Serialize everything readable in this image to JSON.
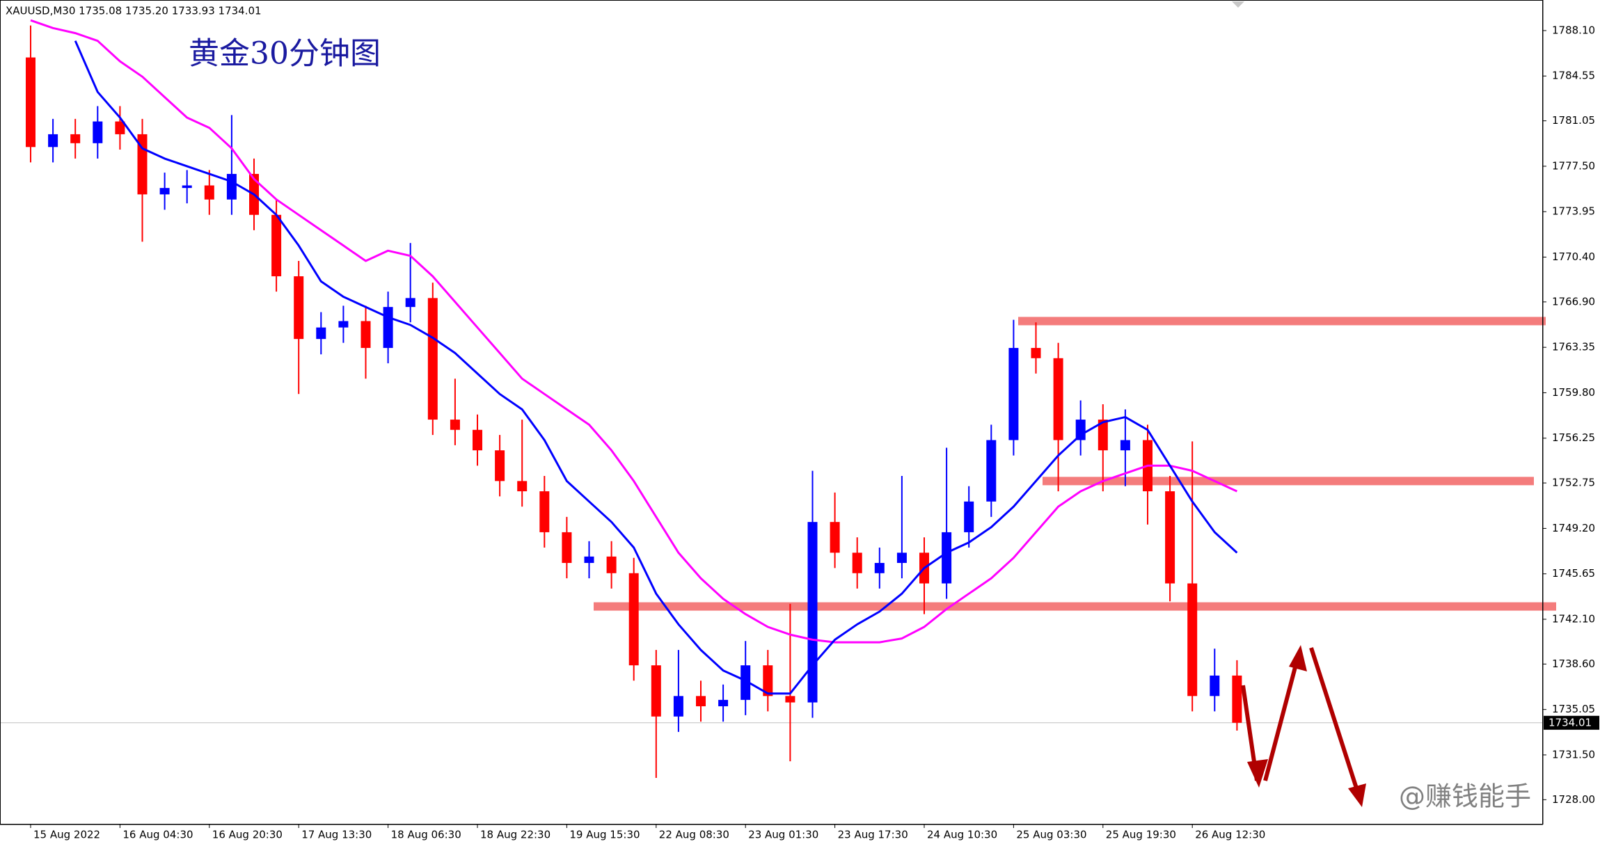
{
  "chart_data": {
    "type": "candlestick",
    "header": "XAUUSD,M30  1735.08 1735.20 1733.93 1734.01",
    "title": "黄金30分钟图",
    "watermark": "@赚钱能手",
    "categories": [
      "15 Aug 2022",
      null,
      null,
      null,
      "16 Aug 04:30",
      null,
      null,
      null,
      "16 Aug 20:30",
      null,
      null,
      null,
      "17 Aug 13:30",
      null,
      null,
      null,
      "18 Aug 06:30",
      null,
      null,
      null,
      "18 Aug 22:30",
      null,
      null,
      null,
      "19 Aug 15:30",
      null,
      null,
      null,
      "22 Aug 08:30",
      null,
      null,
      null,
      "23 Aug 01:30",
      null,
      null,
      null,
      "23 Aug 17:30",
      null,
      null,
      null,
      "24 Aug 10:30",
      null,
      null,
      null,
      "25 Aug 03:30",
      null,
      null,
      null,
      "25 Aug 19:30",
      null,
      null,
      null,
      "26 Aug 12:30",
      null,
      null
    ],
    "open": [
      1786,
      1779,
      1780,
      1779.3,
      1781,
      1780,
      1775.3,
      1775.8,
      1776,
      1774.9,
      1776.9,
      1773.7,
      1768.9,
      1764,
      1764.9,
      1765.4,
      1763.3,
      1766.5,
      1767.2,
      1757.7,
      1756.9,
      1755.3,
      1752.9,
      1752.1,
      1748.9,
      1746.5,
      1747,
      1745.7,
      1738.5,
      1734.5,
      1736.1,
      1735.3,
      1735.8,
      1738.5,
      1736.1,
      1735.6,
      1749.7,
      1747.3,
      1745.7,
      1746.5,
      1747.3,
      1744.9,
      1748.9,
      1751.3,
      1756.1,
      1763.3,
      1762.5,
      1756.1,
      1757.7,
      1755.3,
      1756.1,
      1752.1,
      1744.9,
      1736.1,
      1737.7
    ],
    "high": [
      1788.5,
      1781.2,
      1781.2,
      1782.2,
      1782.2,
      1781.2,
      1777,
      1777.2,
      1777.2,
      1781.5,
      1778.1,
      1774.9,
      1770.1,
      1766.1,
      1766.6,
      1766.6,
      1767.7,
      1771.5,
      1768.4,
      1760.9,
      1758.1,
      1756.5,
      1757.7,
      1753.3,
      1750.1,
      1748.2,
      1748.2,
      1746.9,
      1739.7,
      1739.7,
      1737.3,
      1737,
      1740.4,
      1739.7,
      1743.3,
      1753.7,
      1752,
      1748.5,
      1747.7,
      1753.3,
      1748.5,
      1755.5,
      1752.5,
      1757.3,
      1765.5,
      1765.3,
      1763.7,
      1759.2,
      1758.9,
      1758.5,
      1757.3,
      1753.3,
      1756,
      1739.8,
      1738.9
    ],
    "low": [
      1777.8,
      1777.8,
      1778.1,
      1778.1,
      1778.8,
      1771.6,
      1774.1,
      1774.6,
      1773.7,
      1773.7,
      1772.5,
      1767.7,
      1759.7,
      1762.8,
      1763.7,
      1760.9,
      1762.1,
      1765.3,
      1756.5,
      1755.7,
      1754.1,
      1751.7,
      1750.9,
      1747.7,
      1745.3,
      1745.3,
      1744.5,
      1737.3,
      1729.7,
      1733.3,
      1734.1,
      1734.1,
      1734.6,
      1734.9,
      1731,
      1734.4,
      1746.1,
      1744.5,
      1744.5,
      1745.3,
      1742.5,
      1743.7,
      1747.7,
      1750.1,
      1754.9,
      1761.3,
      1752.1,
      1754.9,
      1752.1,
      1752.5,
      1749.5,
      1743.5,
      1734.9,
      1734.9,
      1733.4
    ],
    "close": [
      1779,
      1780,
      1779.3,
      1781,
      1780,
      1775.3,
      1775.8,
      1776,
      1774.9,
      1776.9,
      1773.7,
      1768.9,
      1764,
      1764.9,
      1765.4,
      1763.3,
      1766.5,
      1767.2,
      1757.7,
      1756.9,
      1755.3,
      1752.9,
      1752.1,
      1748.9,
      1746.5,
      1747,
      1745.7,
      1738.5,
      1734.5,
      1736.1,
      1735.3,
      1735.8,
      1738.5,
      1736.1,
      1735.6,
      1749.7,
      1747.3,
      1745.7,
      1746.5,
      1747.3,
      1744.9,
      1748.9,
      1751.3,
      1756.1,
      1763.3,
      1762.5,
      1756.1,
      1757.7,
      1755.3,
      1756.1,
      1752.1,
      1744.9,
      1736.1,
      1737.7,
      1734.01
    ],
    "up_color": "#0000ff",
    "down_color": "#ff0000",
    "moving_averages": [
      {
        "color": "#ff00ff",
        "values": [
          1788.9,
          1788.3,
          1787.9,
          1787.3,
          1785.7,
          1784.5,
          1782.9,
          1781.3,
          1780.5,
          1778.9,
          1776.5,
          1774.9,
          1773.7,
          1772.5,
          1771.3,
          1770.1,
          1770.9,
          1770.5,
          1768.9,
          1766.9,
          1764.9,
          1762.9,
          1760.9,
          1759.7,
          1758.5,
          1757.3,
          1755.3,
          1752.9,
          1750.1,
          1747.3,
          1745.3,
          1743.7,
          1742.5,
          1741.5,
          1740.9,
          1740.5,
          1740.3,
          1740.3,
          1740.3,
          1740.6,
          1741.5,
          1742.9,
          1744.1,
          1745.3,
          1746.9,
          1748.9,
          1750.9,
          1752.1,
          1752.9,
          1753.5,
          1754.1,
          1754.1,
          1753.7,
          1752.9,
          1752.1
        ]
      },
      {
        "color": "#0000ff",
        "values": [
          null,
          null,
          1787.3,
          1783.3,
          1781.3,
          1778.9,
          1778.1,
          1777.5,
          1776.9,
          1776.3,
          1775.3,
          1773.7,
          1771.3,
          1768.5,
          1767.3,
          1766.5,
          1765.7,
          1765.1,
          1764.1,
          1762.9,
          1761.3,
          1759.7,
          1758.5,
          1756.1,
          1752.9,
          1751.3,
          1749.7,
          1747.7,
          1744.1,
          1741.7,
          1739.7,
          1738.1,
          1737.3,
          1736.3,
          1736.3,
          1738.5,
          1740.5,
          1741.7,
          1742.7,
          1744.1,
          1746.1,
          1747.3,
          1748.1,
          1749.3,
          1750.9,
          1752.9,
          1754.9,
          1756.5,
          1757.5,
          1757.9,
          1756.9,
          1754.1,
          1751.3,
          1748.9,
          1747.3
        ]
      }
    ],
    "zones": {
      "color": "#f47c7c",
      "values": [
        1765.4,
        1752.9,
        1743.1
      ]
    },
    "last_price": 1734.01,
    "ylim": [
      1726.06,
      1790.49
    ],
    "yticks": [
      {
        "value": 1788.1,
        "label": "1788.10"
      },
      {
        "value": 1784.55,
        "label": "1784.55"
      },
      {
        "value": 1781.05,
        "label": "1781.05"
      },
      {
        "value": 1777.5,
        "label": "1777.50"
      },
      {
        "value": 1773.95,
        "label": "1773.95"
      },
      {
        "value": 1770.4,
        "label": "1770.40"
      },
      {
        "value": 1766.9,
        "label": "1766.90"
      },
      {
        "value": 1763.35,
        "label": "1763.35"
      },
      {
        "value": 1759.8,
        "label": "1759.80"
      },
      {
        "value": 1756.25,
        "label": "1756.25"
      },
      {
        "value": 1752.75,
        "label": "1752.75"
      },
      {
        "value": 1749.2,
        "label": "1749.20"
      },
      {
        "value": 1745.65,
        "label": "1745.65"
      },
      {
        "value": 1742.1,
        "label": "1742.10"
      },
      {
        "value": 1738.6,
        "label": "1738.60"
      },
      {
        "value": 1735.05,
        "label": "1735.05"
      },
      {
        "value": 1731.5,
        "label": "1731.50"
      },
      {
        "value": 1728,
        "label": "1728.00"
      }
    ]
  }
}
